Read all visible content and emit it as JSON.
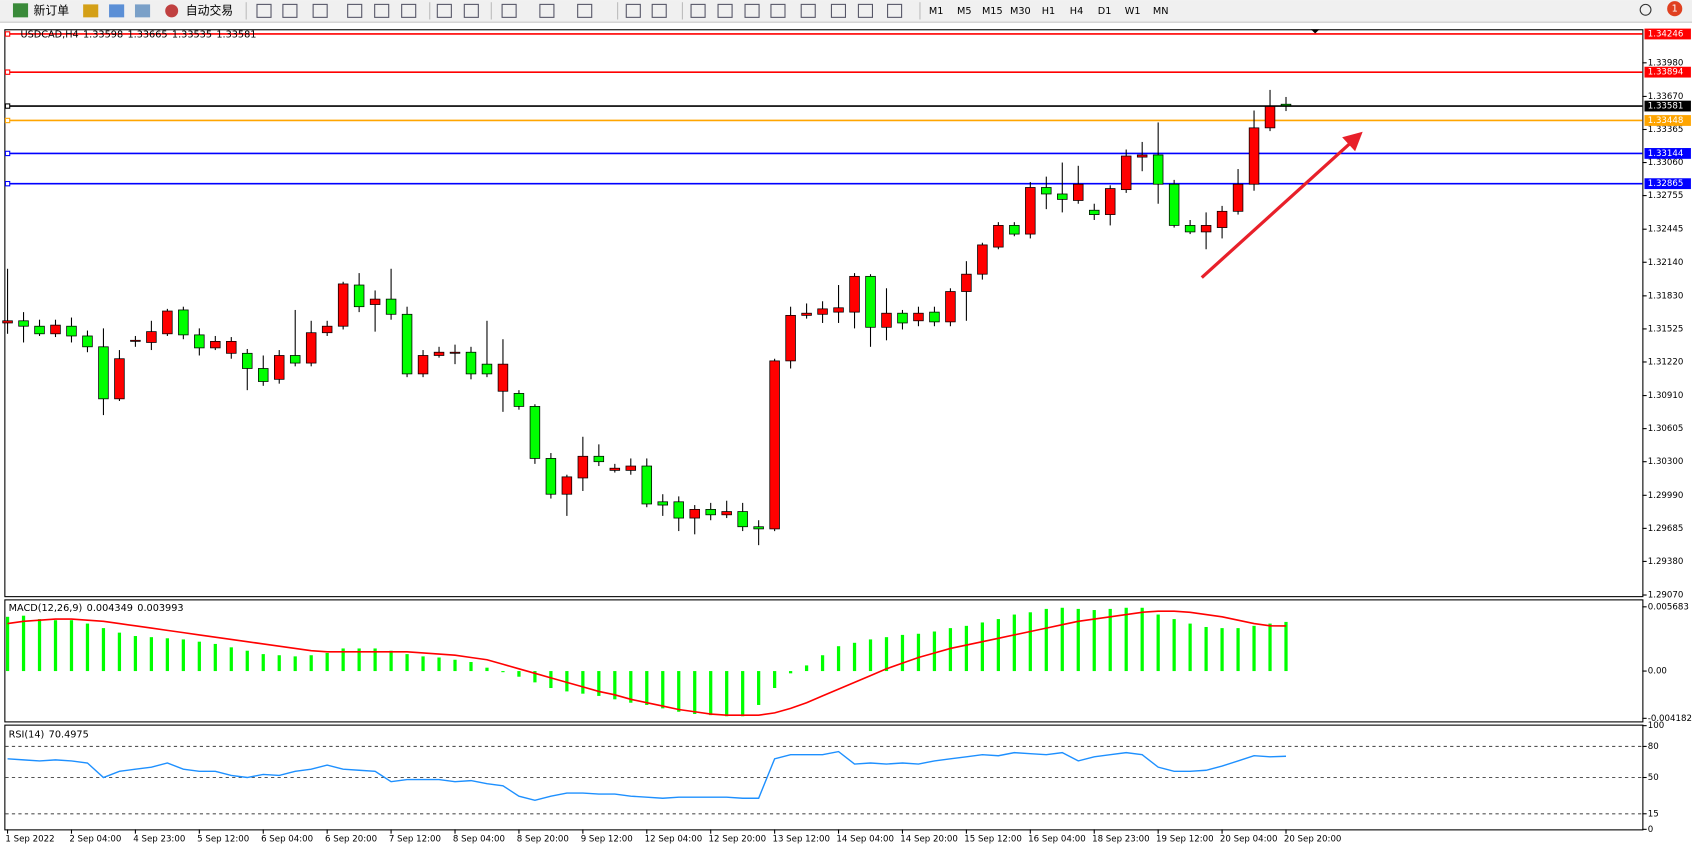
{
  "toolbar": {
    "new_order": "新订单",
    "auto_trading": "自动交易",
    "timeframes": [
      "M1",
      "M5",
      "M15",
      "M30",
      "H1",
      "H4",
      "D1",
      "W1",
      "MN"
    ],
    "notification_count": 1
  },
  "chart_data": [
    {
      "type": "candlestick",
      "title": "USDCAD,H4",
      "up_color": "#ff0000",
      "down_color": "#00ff00",
      "categories": [
        "1 Sep 2022",
        null,
        null,
        null,
        "2 Sep 04:00",
        null,
        null,
        null,
        "4 Sep 23:00",
        null,
        null,
        null,
        "5 Sep 12:00",
        null,
        null,
        null,
        "6 Sep 04:00",
        null,
        null,
        null,
        "6 Sep 20:00",
        null,
        null,
        null,
        "7 Sep 12:00",
        null,
        null,
        null,
        "8 Sep 04:00",
        null,
        null,
        null,
        "8 Sep 20:00",
        null,
        null,
        null,
        "9 Sep 12:00",
        null,
        null,
        null,
        "12 Sep 04:00",
        null,
        null,
        null,
        "12 Sep 20:00",
        null,
        null,
        null,
        "13 Sep 12:00",
        null,
        null,
        null,
        "14 Sep 04:00",
        null,
        null,
        null,
        "14 Sep 20:00",
        null,
        null,
        null,
        "15 Sep 12:00",
        null,
        null,
        null,
        "16 Sep 04:00",
        null,
        null,
        null,
        "18 Sep 23:00",
        null,
        null,
        null,
        "19 Sep 12:00",
        null,
        null,
        null,
        "20 Sep 04:00",
        null,
        null,
        null,
        "20 Sep 20:00"
      ],
      "open": [
        1.3158,
        1.316,
        1.3155,
        1.3148,
        1.3155,
        1.3146,
        1.3136,
        1.3088,
        1.3142,
        1.314,
        1.3148,
        1.317,
        1.3147,
        1.3135,
        1.313,
        1.313,
        1.3116,
        1.3106,
        1.3128,
        1.3121,
        1.3149,
        1.3155,
        1.3193,
        1.3175,
        1.318,
        1.3166,
        1.3111,
        1.3128,
        1.313,
        1.3131,
        1.312,
        1.3095,
        1.3093,
        1.3081,
        1.3033,
        1.3,
        1.3015,
        1.3035,
        1.3022,
        1.3022,
        1.3026,
        1.2993,
        1.2993,
        1.2978,
        1.2986,
        1.2981,
        1.2984,
        1.297,
        1.2968,
        1.3123,
        1.3165,
        1.3166,
        1.3168,
        1.3168,
        1.3201,
        1.3154,
        1.3167,
        1.316,
        1.3168,
        1.3159,
        1.3187,
        1.3203,
        1.3228,
        1.3248,
        1.324,
        1.3283,
        1.3277,
        1.3271,
        1.3262,
        1.3258,
        1.3281,
        1.3311,
        1.3313,
        1.3286,
        1.3248,
        1.3242,
        1.3246,
        1.3261,
        1.3286,
        1.3338,
        1.33598
      ],
      "high": [
        1.3208,
        1.3168,
        1.3161,
        1.3161,
        1.3163,
        1.3151,
        1.3153,
        1.3133,
        1.3146,
        1.316,
        1.3171,
        1.3173,
        1.3153,
        1.3146,
        1.3145,
        1.3134,
        1.3128,
        1.3133,
        1.317,
        1.316,
        1.316,
        1.3196,
        1.3204,
        1.3188,
        1.3208,
        1.3173,
        1.3133,
        1.3136,
        1.3138,
        1.3136,
        1.316,
        1.3143,
        1.3096,
        1.3083,
        1.3038,
        1.3018,
        1.3053,
        1.3046,
        1.3028,
        1.3033,
        1.3033,
        1.3,
        1.2998,
        1.299,
        1.2992,
        1.2994,
        1.2992,
        1.2976,
        1.3125,
        1.3173,
        1.3176,
        1.3178,
        1.3193,
        1.3204,
        1.3203,
        1.319,
        1.317,
        1.3173,
        1.3173,
        1.319,
        1.3215,
        1.3232,
        1.3251,
        1.3251,
        1.3288,
        1.3293,
        1.3306,
        1.3303,
        1.3268,
        1.3285,
        1.3318,
        1.3325,
        1.3343,
        1.329,
        1.3253,
        1.326,
        1.3266,
        1.33,
        1.3354,
        1.3373,
        1.33665
      ],
      "low": [
        1.3148,
        1.314,
        1.3146,
        1.3145,
        1.314,
        1.3131,
        1.3073,
        1.3086,
        1.3136,
        1.3133,
        1.3146,
        1.3143,
        1.3128,
        1.3133,
        1.3125,
        1.3096,
        1.31,
        1.3102,
        1.3118,
        1.3118,
        1.3146,
        1.3152,
        1.3168,
        1.315,
        1.3161,
        1.3108,
        1.3108,
        1.3126,
        1.312,
        1.3106,
        1.3108,
        1.3076,
        1.3078,
        1.3028,
        1.2996,
        1.298,
        1.3003,
        1.3026,
        1.302,
        1.3018,
        1.2988,
        1.298,
        1.2966,
        1.2963,
        1.2976,
        1.2978,
        1.2966,
        1.2953,
        1.2966,
        1.3116,
        1.3162,
        1.3158,
        1.3158,
        1.3153,
        1.3136,
        1.3142,
        1.3152,
        1.3155,
        1.3155,
        1.3155,
        1.316,
        1.3198,
        1.3226,
        1.3238,
        1.3236,
        1.3263,
        1.326,
        1.3268,
        1.3253,
        1.3248,
        1.3278,
        1.3298,
        1.3268,
        1.3246,
        1.324,
        1.3226,
        1.3236,
        1.3258,
        1.328,
        1.3335,
        1.33535
      ],
      "close": [
        1.316,
        1.3155,
        1.3148,
        1.3156,
        1.3146,
        1.3136,
        1.3088,
        1.3125,
        1.3142,
        1.315,
        1.3169,
        1.3147,
        1.3135,
        1.3141,
        1.3141,
        1.3116,
        1.3104,
        1.3128,
        1.3121,
        1.3149,
        1.3155,
        1.3194,
        1.3173,
        1.318,
        1.3166,
        1.3111,
        1.3128,
        1.3131,
        1.3131,
        1.3111,
        1.3111,
        1.312,
        1.3081,
        1.3033,
        1.3,
        1.3016,
        1.3035,
        1.303,
        1.3024,
        1.3026,
        1.2991,
        1.299,
        1.2978,
        1.2986,
        1.2981,
        1.2984,
        1.297,
        1.2968,
        1.3123,
        1.3165,
        1.3167,
        1.3171,
        1.3172,
        1.3201,
        1.3154,
        1.3167,
        1.3158,
        1.3167,
        1.3159,
        1.3187,
        1.3203,
        1.323,
        1.3248,
        1.324,
        1.3283,
        1.3277,
        1.3272,
        1.3286,
        1.3258,
        1.3282,
        1.3312,
        1.3313,
        1.3286,
        1.3248,
        1.3242,
        1.3248,
        1.3261,
        1.3286,
        1.3338,
        1.3358,
        1.33581
      ],
      "current_price_color": "#000000",
      "hlines": [
        {
          "value": 1.34246,
          "color": "#ff0000"
        },
        {
          "value": 1.33894,
          "color": "#ff0000"
        },
        {
          "value": 1.33448,
          "color": "#ffa500"
        },
        {
          "value": 1.33144,
          "color": "#0000ff"
        },
        {
          "value": 1.32865,
          "color": "#0000ff"
        }
      ],
      "ylim": [
        1.2906,
        1.3428
      ],
      "yticks": [
        {
          "value": 1.3398,
          "label": "1.33980"
        },
        {
          "value": 1.3367,
          "label": "1.33670"
        },
        1.33365,
        {
          "value": 1.3306,
          "label": "1.33060"
        },
        1.32755,
        1.32445,
        {
          "value": 1.3214,
          "label": "1.32140"
        },
        {
          "value": 1.3183,
          "label": "1.31830"
        },
        1.31525,
        {
          "value": 1.3122,
          "label": "1.31220"
        },
        {
          "value": 1.3091,
          "label": "1.30910"
        },
        1.30605,
        {
          "value": 1.303,
          "label": "1.30300"
        },
        {
          "value": 1.2999,
          "label": "1.29990"
        },
        1.29685,
        {
          "value": 1.2938,
          "label": "1.29380"
        },
        {
          "value": 1.2907,
          "label": "1.29070"
        }
      ]
    },
    {
      "type": "macd",
      "title": "MACD(12,26,9)",
      "hist_color": "#00ff00",
      "signal_color": "#ff0000",
      "hist": [
        0.0048,
        0.0049,
        0.0046,
        0.0045,
        0.0045,
        0.0042,
        0.0038,
        0.0034,
        0.0031,
        0.003,
        0.0029,
        0.0028,
        0.0026,
        0.0024,
        0.0021,
        0.0018,
        0.0015,
        0.0014,
        0.0013,
        0.0014,
        0.0016,
        0.002,
        0.002,
        0.002,
        0.0018,
        0.0015,
        0.0013,
        0.0012,
        0.001,
        0.0008,
        0.0003,
        -0.0001,
        -0.0005,
        -0.001,
        -0.0015,
        -0.0018,
        -0.002,
        -0.0022,
        -0.0025,
        -0.0028,
        -0.003,
        -0.0033,
        -0.0036,
        -0.0038,
        -0.0039,
        -0.004,
        -0.004,
        -0.003,
        -0.0015,
        -0.0002,
        0.0005,
        0.0014,
        0.0022,
        0.0025,
        0.0028,
        0.003,
        0.0032,
        0.0033,
        0.0035,
        0.0038,
        0.004,
        0.0043,
        0.0046,
        0.005,
        0.0052,
        0.0055,
        0.0056,
        0.0055,
        0.0054,
        0.0055,
        0.0056,
        0.0056,
        0.005,
        0.0046,
        0.0042,
        0.0039,
        0.0038,
        0.0038,
        0.004,
        0.0042,
        0.004349
      ],
      "signal": [
        0.0042,
        0.0044,
        0.0045,
        0.0046,
        0.0046,
        0.0045,
        0.0044,
        0.0042,
        0.004,
        0.0038,
        0.0036,
        0.0034,
        0.0032,
        0.003,
        0.0028,
        0.0026,
        0.0024,
        0.0022,
        0.002,
        0.0018,
        0.0017,
        0.0017,
        0.0017,
        0.0017,
        0.0017,
        0.0017,
        0.0016,
        0.0015,
        0.0014,
        0.0012,
        0.001,
        0.0006,
        0.0002,
        -0.0002,
        -0.0006,
        -0.001,
        -0.0014,
        -0.0018,
        -0.0021,
        -0.0025,
        -0.0028,
        -0.0031,
        -0.0034,
        -0.0036,
        -0.0038,
        -0.0039,
        -0.0039,
        -0.0039,
        -0.0037,
        -0.0033,
        -0.0028,
        -0.0022,
        -0.0016,
        -0.001,
        -0.0004,
        0.0002,
        0.0007,
        0.0012,
        0.0016,
        0.002,
        0.0023,
        0.0026,
        0.0029,
        0.0032,
        0.0035,
        0.0038,
        0.0041,
        0.0044,
        0.0046,
        0.0048,
        0.005,
        0.0052,
        0.0053,
        0.0053,
        0.0052,
        0.005,
        0.0048,
        0.0045,
        0.0042,
        0.004,
        0.003993
      ],
      "ylim": [
        -0.00445,
        0.00625
      ],
      "yticks": [
        0.005683,
        {
          "value": 0,
          "label": "0.00"
        },
        -0.004182
      ]
    },
    {
      "type": "line",
      "title": "RSI(14)",
      "series": [
        {
          "color": "#1e90ff",
          "values": [
            68,
            67,
            66,
            67,
            66,
            64,
            50,
            56,
            58,
            60,
            64,
            58,
            56,
            56,
            52,
            50,
            53,
            52,
            56,
            58,
            62,
            58,
            57,
            56,
            46,
            48,
            48,
            48,
            46,
            47,
            44,
            42,
            32,
            28,
            32,
            35,
            35,
            34,
            34,
            32,
            31,
            30,
            31,
            31,
            31,
            31,
            30,
            30,
            68,
            72,
            72,
            72,
            75,
            63,
            64,
            63,
            64,
            63,
            66,
            68,
            70,
            72,
            71,
            74,
            73,
            72,
            74,
            66,
            70,
            72,
            74,
            72,
            60,
            56,
            56,
            57,
            61,
            66,
            71,
            70,
            70.4975
          ]
        }
      ],
      "ylim": [
        0,
        100
      ],
      "yticks": [
        100,
        80,
        50,
        15,
        0
      ]
    }
  ]
}
